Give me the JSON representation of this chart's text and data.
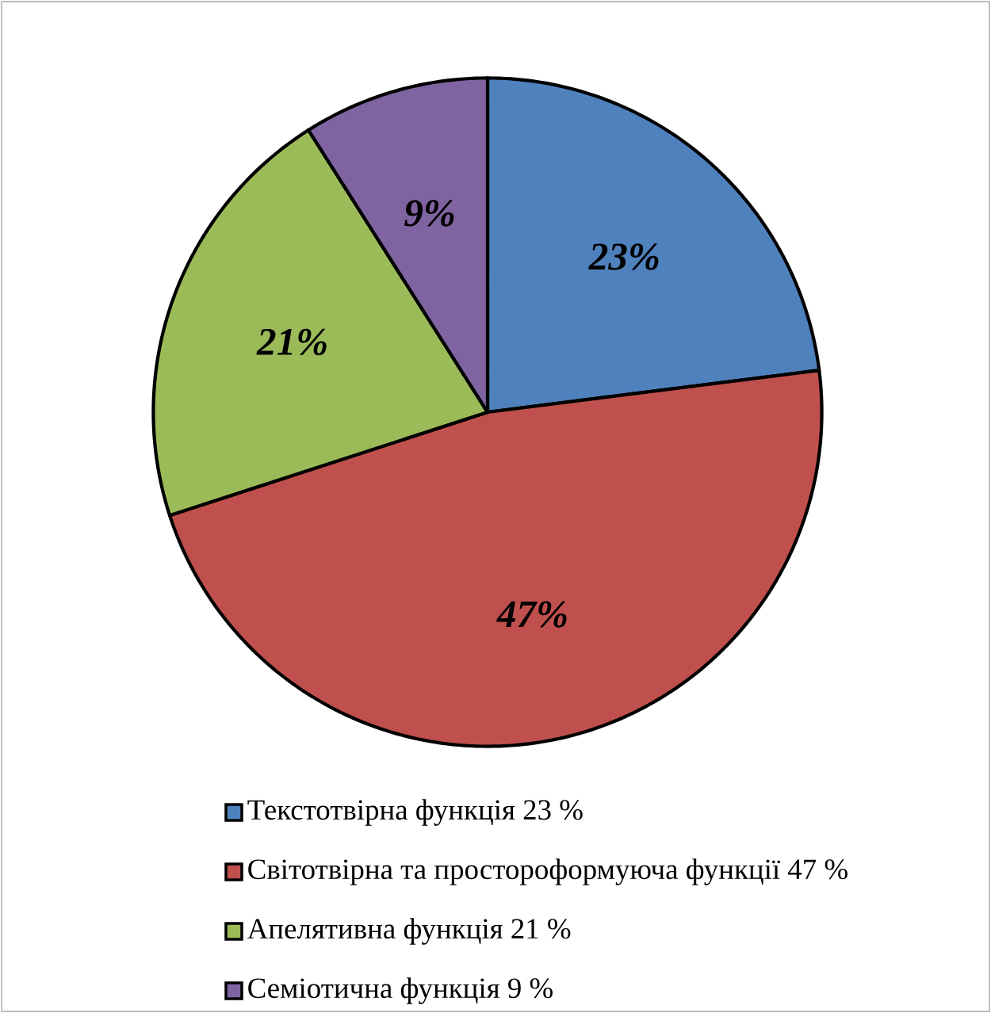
{
  "chart_data": {
    "type": "pie",
    "categories": [
      "Текстотвірна функція 23 %",
      "Світотвірна та простороформуюча функції 47 %",
      "Апелятивна функція 21 %",
      "Семіотична функція 9 %"
    ],
    "values": [
      23,
      47,
      21,
      9
    ],
    "colors": [
      "#4f81bd",
      "#c0504d",
      "#9bbb59",
      "#8064a2"
    ],
    "value_labels": [
      "23%",
      "47%",
      "21%",
      "9%"
    ],
    "legend": "bottom"
  }
}
